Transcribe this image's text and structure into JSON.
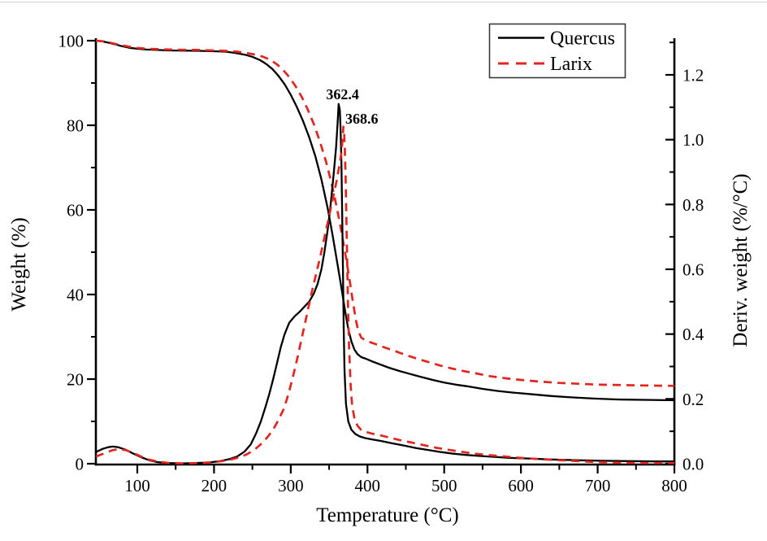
{
  "colors": {
    "black": "#000000",
    "red": "#e2251f",
    "legend_border": "#3a3a3a"
  },
  "chart_data": {
    "type": "line",
    "title": "",
    "xlabel": "Temperature (°C)",
    "ylabel_left": "Weight (%)",
    "ylabel_right": "Deriv. weight (%/°C)",
    "x_axis": {
      "min": 46,
      "max": 800,
      "major_ticks": [
        100,
        200,
        300,
        400,
        500,
        600,
        700,
        800
      ],
      "major_labels": [
        "100",
        "200",
        "300",
        "400",
        "500",
        "600",
        "700",
        "800"
      ],
      "minor_ticks": [
        150,
        250,
        350,
        450,
        550,
        650,
        750
      ]
    },
    "y_axis_left": {
      "min": 0,
      "max": 100,
      "major_ticks": [
        0,
        20,
        40,
        60,
        80,
        100
      ],
      "major_labels": [
        "0",
        "20",
        "40",
        "60",
        "80",
        "100"
      ],
      "minor_ticks": [
        10,
        30,
        50,
        70,
        90
      ]
    },
    "y_axis_right": {
      "min": 0.0,
      "max": 1.2,
      "major_ticks": [
        0.0,
        0.2,
        0.4,
        0.6,
        0.8,
        1.0,
        1.2
      ],
      "major_labels": [
        "0.0",
        "0.2",
        "0.4",
        "0.6",
        "0.8",
        "1.0",
        "1.2"
      ],
      "minor_ticks": [
        0.1,
        0.3,
        0.5,
        0.7,
        0.9,
        1.1,
        1.3
      ]
    },
    "legend": {
      "position": "top-right",
      "entries": [
        "Quercus",
        "Larix"
      ]
    },
    "annotations": [
      {
        "text": "362.4",
        "t": 367.5,
        "v": 1.14
      },
      {
        "text": "368.6",
        "t": 392.5,
        "v": 1.065
      }
    ],
    "series": [
      {
        "name": "Quercus",
        "kind": "TG",
        "axis": "left",
        "color": "#000000",
        "line_style": "solid",
        "points": [
          [
            46,
            100
          ],
          [
            55,
            99.8
          ],
          [
            63,
            99.5
          ],
          [
            72,
            99.1
          ],
          [
            80,
            98.7
          ],
          [
            90,
            98.3
          ],
          [
            100,
            98.1
          ],
          [
            112,
            97.9
          ],
          [
            126,
            97.8
          ],
          [
            142,
            97.7
          ],
          [
            160,
            97.65
          ],
          [
            180,
            97.6
          ],
          [
            200,
            97.5
          ],
          [
            215,
            97.4
          ],
          [
            228,
            97.1
          ],
          [
            240,
            96.7
          ],
          [
            250,
            96.2
          ],
          [
            260,
            95.4
          ],
          [
            268,
            94.5
          ],
          [
            276,
            93.3
          ],
          [
            284,
            91.7
          ],
          [
            292,
            89.7
          ],
          [
            300,
            87.2
          ],
          [
            308,
            84.3
          ],
          [
            316,
            81.0
          ],
          [
            324,
            77.2
          ],
          [
            332,
            72.7
          ],
          [
            340,
            67.2
          ],
          [
            348,
            60.5
          ],
          [
            354,
            54.6
          ],
          [
            360,
            48.2
          ],
          [
            366,
            41.6
          ],
          [
            371,
            35.9
          ],
          [
            375,
            31.8
          ],
          [
            379,
            28.9
          ],
          [
            383,
            27.0
          ],
          [
            387,
            25.9
          ],
          [
            392,
            25.2
          ],
          [
            398,
            24.8
          ],
          [
            406,
            24.2
          ],
          [
            416,
            23.5
          ],
          [
            428,
            22.7
          ],
          [
            442,
            21.9
          ],
          [
            456,
            21.2
          ],
          [
            470,
            20.5
          ],
          [
            485,
            19.8
          ],
          [
            500,
            19.2
          ],
          [
            515,
            18.7
          ],
          [
            530,
            18.3
          ],
          [
            550,
            17.7
          ],
          [
            570,
            17.2
          ],
          [
            590,
            16.8
          ],
          [
            615,
            16.4
          ],
          [
            640,
            16.0
          ],
          [
            665,
            15.7
          ],
          [
            695,
            15.4
          ],
          [
            725,
            15.2
          ],
          [
            760,
            15.1
          ],
          [
            800,
            15.0
          ]
        ]
      },
      {
        "name": "Larix",
        "kind": "TG",
        "axis": "left",
        "color": "#e2251f",
        "line_style": "dashed",
        "points": [
          [
            46,
            100
          ],
          [
            56,
            99.85
          ],
          [
            64,
            99.55
          ],
          [
            72,
            99.2
          ],
          [
            80,
            98.9
          ],
          [
            90,
            98.55
          ],
          [
            100,
            98.3
          ],
          [
            112,
            98.1
          ],
          [
            126,
            98.0
          ],
          [
            142,
            97.9
          ],
          [
            160,
            97.85
          ],
          [
            180,
            97.8
          ],
          [
            200,
            97.7
          ],
          [
            216,
            97.6
          ],
          [
            230,
            97.4
          ],
          [
            242,
            97.1
          ],
          [
            254,
            96.7
          ],
          [
            264,
            96.2
          ],
          [
            274,
            95.4
          ],
          [
            282,
            94.4
          ],
          [
            290,
            93.1
          ],
          [
            298,
            91.4
          ],
          [
            306,
            89.3
          ],
          [
            314,
            86.8
          ],
          [
            322,
            83.8
          ],
          [
            330,
            80.3
          ],
          [
            338,
            76.2
          ],
          [
            346,
            71.4
          ],
          [
            353,
            66.4
          ],
          [
            360,
            60.6
          ],
          [
            366,
            54.9
          ],
          [
            372,
            48.7
          ],
          [
            377,
            43.0
          ],
          [
            381,
            38.3
          ],
          [
            385,
            33.9
          ],
          [
            388,
            31.4
          ],
          [
            392,
            29.8
          ],
          [
            397,
            29.2
          ],
          [
            404,
            28.7
          ],
          [
            412,
            28.2
          ],
          [
            422,
            27.5
          ],
          [
            435,
            26.7
          ],
          [
            450,
            25.7
          ],
          [
            465,
            24.8
          ],
          [
            480,
            24.0
          ],
          [
            495,
            23.2
          ],
          [
            510,
            22.5
          ],
          [
            525,
            21.9
          ],
          [
            540,
            21.4
          ],
          [
            560,
            20.7
          ],
          [
            580,
            20.2
          ],
          [
            600,
            19.8
          ],
          [
            625,
            19.4
          ],
          [
            650,
            19.1
          ],
          [
            675,
            18.9
          ],
          [
            700,
            18.7
          ],
          [
            730,
            18.6
          ],
          [
            760,
            18.5
          ],
          [
            800,
            18.4
          ]
        ]
      },
      {
        "name": "Quercus deriv.",
        "kind": "DTG",
        "axis": "right",
        "color": "#000000",
        "line_style": "solid",
        "points": [
          [
            46,
            0.036
          ],
          [
            55,
            0.046
          ],
          [
            62,
            0.051
          ],
          [
            68,
            0.053
          ],
          [
            75,
            0.051
          ],
          [
            85,
            0.043
          ],
          [
            95,
            0.031
          ],
          [
            105,
            0.02
          ],
          [
            115,
            0.011
          ],
          [
            126,
            0.005
          ],
          [
            140,
            0.002
          ],
          [
            158,
            0.001
          ],
          [
            176,
            0.002
          ],
          [
            194,
            0.004
          ],
          [
            208,
            0.008
          ],
          [
            220,
            0.014
          ],
          [
            230,
            0.022
          ],
          [
            240,
            0.038
          ],
          [
            248,
            0.06
          ],
          [
            255,
            0.095
          ],
          [
            261,
            0.13
          ],
          [
            267,
            0.175
          ],
          [
            272,
            0.215
          ],
          [
            277,
            0.26
          ],
          [
            282,
            0.31
          ],
          [
            287,
            0.36
          ],
          [
            292,
            0.4
          ],
          [
            298,
            0.435
          ],
          [
            305,
            0.455
          ],
          [
            312,
            0.47
          ],
          [
            318,
            0.485
          ],
          [
            324,
            0.5
          ],
          [
            330,
            0.525
          ],
          [
            335,
            0.555
          ],
          [
            340,
            0.6
          ],
          [
            344,
            0.655
          ],
          [
            348,
            0.72
          ],
          [
            352,
            0.8
          ],
          [
            356,
            0.895
          ],
          [
            359,
            0.975
          ],
          [
            361,
            1.05
          ],
          [
            362.4,
            1.11
          ],
          [
            364,
            1.09
          ],
          [
            365,
            1.03
          ],
          [
            366,
            0.93
          ],
          [
            367,
            0.78
          ],
          [
            368,
            0.6
          ],
          [
            369,
            0.42
          ],
          [
            370,
            0.29
          ],
          [
            372,
            0.185
          ],
          [
            375,
            0.13
          ],
          [
            379,
            0.105
          ],
          [
            384,
            0.092
          ],
          [
            390,
            0.084
          ],
          [
            397,
            0.079
          ],
          [
            406,
            0.075
          ],
          [
            418,
            0.07
          ],
          [
            432,
            0.063
          ],
          [
            448,
            0.056
          ],
          [
            464,
            0.048
          ],
          [
            480,
            0.042
          ],
          [
            496,
            0.036
          ],
          [
            512,
            0.031
          ],
          [
            528,
            0.027
          ],
          [
            545,
            0.024
          ],
          [
            565,
            0.021
          ],
          [
            585,
            0.018
          ],
          [
            610,
            0.016
          ],
          [
            640,
            0.013
          ],
          [
            670,
            0.011
          ],
          [
            705,
            0.009
          ],
          [
            740,
            0.008
          ],
          [
            780,
            0.007
          ],
          [
            800,
            0.007
          ]
        ]
      },
      {
        "name": "Larix deriv.",
        "kind": "DTG",
        "axis": "right",
        "color": "#e2251f",
        "line_style": "dashed",
        "points": [
          [
            46,
            0.022
          ],
          [
            58,
            0.033
          ],
          [
            68,
            0.042
          ],
          [
            76,
            0.045
          ],
          [
            85,
            0.042
          ],
          [
            95,
            0.033
          ],
          [
            105,
            0.022
          ],
          [
            116,
            0.012
          ],
          [
            128,
            0.006
          ],
          [
            142,
            0.002
          ],
          [
            160,
            0.001
          ],
          [
            178,
            0.002
          ],
          [
            196,
            0.004
          ],
          [
            210,
            0.008
          ],
          [
            222,
            0.013
          ],
          [
            232,
            0.019
          ],
          [
            242,
            0.028
          ],
          [
            252,
            0.042
          ],
          [
            261,
            0.06
          ],
          [
            269,
            0.08
          ],
          [
            277,
            0.105
          ],
          [
            284,
            0.135
          ],
          [
            291,
            0.17
          ],
          [
            297,
            0.215
          ],
          [
            303,
            0.27
          ],
          [
            309,
            0.33
          ],
          [
            315,
            0.395
          ],
          [
            321,
            0.46
          ],
          [
            327,
            0.525
          ],
          [
            333,
            0.585
          ],
          [
            339,
            0.645
          ],
          [
            345,
            0.71
          ],
          [
            351,
            0.775
          ],
          [
            356,
            0.83
          ],
          [
            360,
            0.875
          ],
          [
            363,
            0.915
          ],
          [
            366,
            0.96
          ],
          [
            368,
            1.015
          ],
          [
            368.6,
            1.04
          ],
          [
            369.5,
            1.025
          ],
          [
            370.5,
            0.97
          ],
          [
            371.5,
            0.88
          ],
          [
            372.5,
            0.76
          ],
          [
            373.5,
            0.63
          ],
          [
            374.5,
            0.5
          ],
          [
            376,
            0.36
          ],
          [
            378,
            0.245
          ],
          [
            380,
            0.18
          ],
          [
            383,
            0.14
          ],
          [
            387,
            0.117
          ],
          [
            392,
            0.104
          ],
          [
            398,
            0.098
          ],
          [
            406,
            0.093
          ],
          [
            416,
            0.088
          ],
          [
            428,
            0.081
          ],
          [
            442,
            0.073
          ],
          [
            458,
            0.065
          ],
          [
            474,
            0.057
          ],
          [
            490,
            0.049
          ],
          [
            506,
            0.043
          ],
          [
            522,
            0.037
          ],
          [
            540,
            0.031
          ],
          [
            560,
            0.026
          ],
          [
            580,
            0.022
          ],
          [
            600,
            0.018
          ],
          [
            625,
            0.014
          ],
          [
            650,
            0.011
          ],
          [
            675,
            0.008
          ],
          [
            700,
            0.005
          ],
          [
            730,
            0.003
          ],
          [
            760,
            0.002
          ],
          [
            800,
            0.002
          ]
        ]
      }
    ]
  }
}
